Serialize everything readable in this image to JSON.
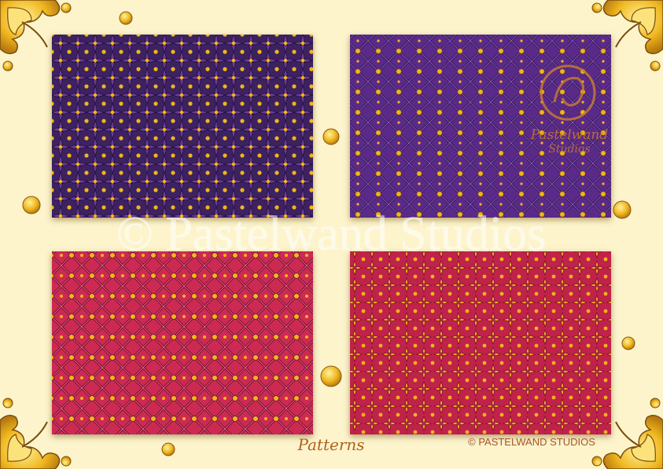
{
  "watermark": "© Pastelwand Studios",
  "caption": "Patterns",
  "copyright": "© PASTELWAND STUDIOS",
  "logo": {
    "line1": "Pastelwand",
    "line2": "Studios"
  }
}
